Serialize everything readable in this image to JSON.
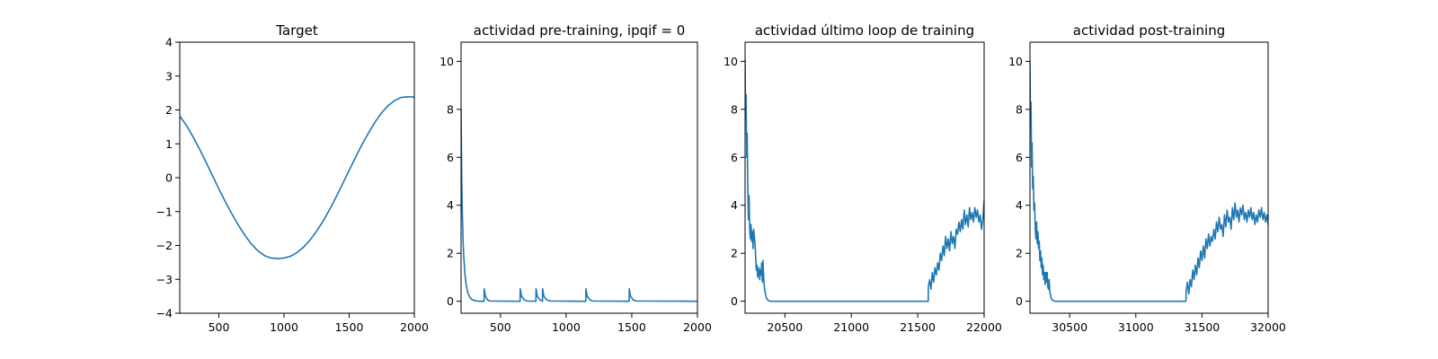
{
  "figure": {
    "series_color": "#1f77b4"
  },
  "chart_data": [
    {
      "type": "line",
      "title": "Target",
      "xlabel": "",
      "ylabel": "",
      "xlim": [
        200,
        2000
      ],
      "ylim": [
        -4,
        4
      ],
      "xticks": [
        500,
        1000,
        1500,
        2000
      ],
      "yticks": [
        -4,
        -3,
        -2,
        -1,
        0,
        1,
        2,
        3,
        4
      ],
      "grid": false,
      "series": [
        {
          "x": [
            200,
            250,
            300,
            350,
            400,
            450,
            500,
            550,
            600,
            650,
            700,
            750,
            800,
            850,
            900,
            950,
            980,
            1000,
            1050,
            1100,
            1150,
            1200,
            1250,
            1300,
            1350,
            1400,
            1450,
            1500,
            1550,
            1600,
            1650,
            1700,
            1750,
            1800,
            1850,
            1900,
            1950,
            2000
          ],
          "y": [
            1.82,
            1.55,
            1.22,
            0.86,
            0.47,
            0.07,
            -0.33,
            -0.71,
            -1.07,
            -1.4,
            -1.7,
            -1.96,
            -2.16,
            -2.3,
            -2.37,
            -2.39,
            -2.38,
            -2.37,
            -2.32,
            -2.21,
            -2.05,
            -1.84,
            -1.58,
            -1.28,
            -0.94,
            -0.57,
            -0.18,
            0.22,
            0.61,
            0.99,
            1.33,
            1.65,
            1.92,
            2.13,
            2.28,
            2.37,
            2.39,
            2.38
          ]
        }
      ]
    },
    {
      "type": "line",
      "title": "actividad pre-training, ipqif = 0",
      "xlabel": "",
      "ylabel": "",
      "xlim": [
        200,
        2000
      ],
      "ylim": [
        -0.5,
        10.8
      ],
      "xticks": [
        500,
        1000,
        1500,
        2000
      ],
      "yticks": [
        0,
        2,
        4,
        6,
        8,
        10
      ],
      "grid": false,
      "series": [
        {
          "x": [
            200,
            203,
            206,
            210,
            215,
            220,
            230,
            240,
            250,
            265,
            280,
            300,
            320,
            340,
            360,
            375,
            376,
            385,
            400,
            420,
            650,
            651,
            660,
            680,
            700,
            770,
            771,
            780,
            800,
            820,
            821,
            830,
            850,
            880,
            1150,
            1151,
            1160,
            1180,
            1200,
            1480,
            1481,
            1490,
            1510,
            1530,
            2000
          ],
          "y": [
            8.0,
            6.3,
            4.8,
            3.6,
            2.6,
            1.9,
            1.1,
            0.65,
            0.38,
            0.18,
            0.08,
            0.03,
            0.01,
            0.0,
            0.0,
            0.0,
            0.52,
            0.22,
            0.06,
            0.01,
            0.0,
            0.52,
            0.22,
            0.06,
            0.01,
            0.0,
            0.52,
            0.22,
            0.06,
            0.0,
            0.52,
            0.22,
            0.06,
            0.01,
            0.0,
            0.52,
            0.22,
            0.06,
            0.01,
            0.0,
            0.52,
            0.22,
            0.06,
            0.01,
            0.0
          ]
        }
      ]
    },
    {
      "type": "line",
      "title": "actividad último loop de training",
      "xlabel": "",
      "ylabel": "",
      "xlim": [
        20200,
        22000
      ],
      "ylim": [
        -0.5,
        10.8
      ],
      "xticks": [
        20500,
        21000,
        21500,
        22000
      ],
      "yticks": [
        0,
        2,
        4,
        6,
        8,
        10
      ],
      "grid": false,
      "series": [
        {
          "x": [
            20200,
            20204,
            20208,
            20212,
            20216,
            20220,
            20225,
            20230,
            20235,
            20240,
            20245,
            20250,
            20255,
            20260,
            20265,
            20270,
            20275,
            20280,
            20285,
            20290,
            20295,
            20300,
            20305,
            20310,
            20315,
            20320,
            20325,
            20330,
            20335,
            20340,
            20345,
            20350,
            20360,
            20370,
            20380,
            20390,
            20400,
            20420,
            20450,
            20500,
            21000,
            21500,
            21579,
            21580,
            21590,
            21600,
            21610,
            21620,
            21630,
            21640,
            21650,
            21660,
            21670,
            21680,
            21690,
            21700,
            21710,
            21720,
            21730,
            21740,
            21750,
            21760,
            21770,
            21780,
            21790,
            21800,
            21810,
            21820,
            21830,
            21840,
            21850,
            21860,
            21870,
            21880,
            21890,
            21900,
            21910,
            21920,
            21930,
            21940,
            21950,
            21960,
            21970,
            21980,
            21990,
            22000
          ],
          "y": [
            10.1,
            7.6,
            8.6,
            6.0,
            7.0,
            5.0,
            3.4,
            4.4,
            3.0,
            2.6,
            3.2,
            2.5,
            2.9,
            2.2,
            3.0,
            2.7,
            2.4,
            1.8,
            1.3,
            1.5,
            1.0,
            1.2,
            1.4,
            0.9,
            1.3,
            1.1,
            1.6,
            0.8,
            1.7,
            1.0,
            0.6,
            0.4,
            0.15,
            0.05,
            0.02,
            0.0,
            0.0,
            0.0,
            0.0,
            0.0,
            0.0,
            0.0,
            0.0,
            0.6,
            0.9,
            0.5,
            1.2,
            0.8,
            1.4,
            1.1,
            1.6,
            1.3,
            2.0,
            1.7,
            2.3,
            1.9,
            2.7,
            2.2,
            2.6,
            2.1,
            2.9,
            2.4,
            2.7,
            2.2,
            3.0,
            2.8,
            3.3,
            2.9,
            3.4,
            3.0,
            3.8,
            3.2,
            3.6,
            3.1,
            3.9,
            3.4,
            3.7,
            3.3,
            3.9,
            3.5,
            3.8,
            3.3,
            3.6,
            3.0,
            3.4,
            4.2
          ]
        }
      ]
    },
    {
      "type": "line",
      "title": "actividad post-training",
      "xlabel": "",
      "ylabel": "",
      "xlim": [
        30200,
        32000
      ],
      "ylim": [
        -0.5,
        10.8
      ],
      "xticks": [
        30500,
        31000,
        31500,
        32000
      ],
      "yticks": [
        0,
        2,
        4,
        6,
        8,
        10
      ],
      "grid": false,
      "series": [
        {
          "x": [
            30200,
            30204,
            30208,
            30212,
            30216,
            30220,
            30225,
            30230,
            30235,
            30240,
            30245,
            30250,
            30255,
            30260,
            30265,
            30270,
            30275,
            30280,
            30285,
            30290,
            30295,
            30300,
            30305,
            30310,
            30315,
            30320,
            30325,
            30330,
            30335,
            30340,
            30345,
            30350,
            30355,
            30360,
            30370,
            30380,
            30390,
            30400,
            30450,
            30500,
            31000,
            31379,
            31380,
            31390,
            31400,
            31410,
            31420,
            31430,
            31440,
            31450,
            31460,
            31470,
            31480,
            31490,
            31500,
            31510,
            31520,
            31530,
            31540,
            31550,
            31560,
            31570,
            31580,
            31590,
            31600,
            31610,
            31620,
            31630,
            31640,
            31650,
            31660,
            31670,
            31680,
            31690,
            31700,
            31710,
            31720,
            31730,
            31740,
            31750,
            31760,
            31770,
            31780,
            31790,
            31800,
            31810,
            31820,
            31830,
            31840,
            31850,
            31860,
            31870,
            31880,
            31890,
            31900,
            31910,
            31920,
            31930,
            31940,
            31950,
            31960,
            31970,
            31980,
            31990,
            32000
          ],
          "y": [
            10.0,
            7.2,
            8.3,
            5.6,
            6.6,
            4.7,
            5.2,
            3.8,
            4.1,
            3.0,
            2.6,
            3.3,
            2.4,
            2.9,
            2.2,
            2.5,
            1.7,
            2.1,
            1.4,
            1.8,
            1.1,
            1.5,
            0.9,
            1.2,
            0.7,
            1.2,
            0.8,
            1.2,
            0.6,
            0.5,
            0.9,
            0.4,
            0.25,
            0.12,
            0.05,
            0.02,
            0.0,
            0.0,
            0.0,
            0.0,
            0.0,
            0.0,
            0.4,
            0.8,
            0.3,
            0.9,
            0.6,
            1.3,
            0.9,
            1.5,
            1.1,
            1.8,
            1.4,
            2.1,
            1.7,
            2.3,
            1.8,
            2.6,
            2.2,
            2.8,
            2.3,
            2.7,
            2.5,
            3.0,
            2.6,
            3.3,
            2.9,
            3.5,
            3.0,
            3.2,
            2.7,
            3.6,
            3.1,
            3.8,
            3.3,
            3.5,
            3.0,
            3.9,
            3.4,
            4.1,
            3.5,
            3.8,
            3.3,
            3.9,
            3.6,
            4.0,
            3.4,
            3.7,
            3.3,
            3.8,
            3.5,
            3.9,
            3.4,
            3.7,
            3.2,
            3.6,
            3.3,
            3.8,
            3.5,
            3.9,
            3.4,
            3.7,
            3.3,
            3.6,
            3.2
          ]
        }
      ]
    }
  ]
}
